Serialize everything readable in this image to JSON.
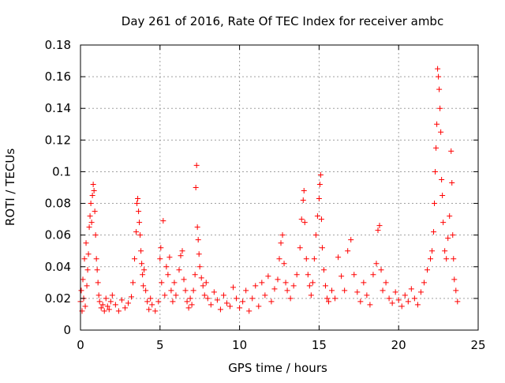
{
  "chart_data": {
    "type": "scatter",
    "title": "Day 261 of 2016, Rate Of TEC Index for receiver ambc",
    "xlabel": "GPS time / hours",
    "ylabel": "ROTI / TECUs",
    "xlim": [
      0,
      25
    ],
    "ylim": [
      0,
      0.18
    ],
    "xticks": [
      0,
      5,
      10,
      15,
      20,
      25
    ],
    "xtick_labels": [
      "0",
      "5",
      "10",
      "15",
      "20",
      "25"
    ],
    "yticks": [
      0,
      0.02,
      0.04,
      0.06,
      0.08,
      0.1,
      0.12,
      0.14,
      0.16,
      0.18
    ],
    "ytick_labels": [
      "0",
      "0.02",
      "0.04",
      "0.06",
      "0.08",
      "0.1",
      "0.12",
      "0.14",
      "0.16",
      "0.18"
    ],
    "grid": true,
    "marker": "+",
    "series": [
      {
        "name": "ROTI",
        "color": "#ff0000",
        "points": [
          [
            0.0,
            0.018
          ],
          [
            0.05,
            0.025
          ],
          [
            0.1,
            0.012
          ],
          [
            0.15,
            0.032
          ],
          [
            0.2,
            0.02
          ],
          [
            0.25,
            0.045
          ],
          [
            0.3,
            0.015
          ],
          [
            0.35,
            0.055
          ],
          [
            0.4,
            0.028
          ],
          [
            0.45,
            0.038
          ],
          [
            0.5,
            0.048
          ],
          [
            0.55,
            0.065
          ],
          [
            0.6,
            0.072
          ],
          [
            0.65,
            0.08
          ],
          [
            0.7,
            0.068
          ],
          [
            0.75,
            0.085
          ],
          [
            0.8,
            0.092
          ],
          [
            0.85,
            0.088
          ],
          [
            0.9,
            0.075
          ],
          [
            0.95,
            0.06
          ],
          [
            1.0,
            0.045
          ],
          [
            1.05,
            0.038
          ],
          [
            1.1,
            0.03
          ],
          [
            1.15,
            0.022
          ],
          [
            1.2,
            0.018
          ],
          [
            1.3,
            0.014
          ],
          [
            1.4,
            0.016
          ],
          [
            1.5,
            0.012
          ],
          [
            1.6,
            0.02
          ],
          [
            1.7,
            0.015
          ],
          [
            1.8,
            0.013
          ],
          [
            1.9,
            0.018
          ],
          [
            2.0,
            0.022
          ],
          [
            2.2,
            0.016
          ],
          [
            2.4,
            0.012
          ],
          [
            2.6,
            0.019
          ],
          [
            2.8,
            0.014
          ],
          [
            3.0,
            0.017
          ],
          [
            3.2,
            0.021
          ],
          [
            3.3,
            0.03
          ],
          [
            3.4,
            0.045
          ],
          [
            3.5,
            0.062
          ],
          [
            3.55,
            0.08
          ],
          [
            3.6,
            0.083
          ],
          [
            3.65,
            0.075
          ],
          [
            3.7,
            0.068
          ],
          [
            3.75,
            0.06
          ],
          [
            3.8,
            0.05
          ],
          [
            3.85,
            0.042
          ],
          [
            3.9,
            0.035
          ],
          [
            3.95,
            0.028
          ],
          [
            4.0,
            0.038
          ],
          [
            4.1,
            0.025
          ],
          [
            4.2,
            0.018
          ],
          [
            4.3,
            0.013
          ],
          [
            4.4,
            0.02
          ],
          [
            4.5,
            0.016
          ],
          [
            4.7,
            0.012
          ],
          [
            4.9,
            0.018
          ],
          [
            5.0,
            0.045
          ],
          [
            5.05,
            0.052
          ],
          [
            5.1,
            0.03
          ],
          [
            5.2,
            0.069
          ],
          [
            5.3,
            0.022
          ],
          [
            5.4,
            0.04
          ],
          [
            5.5,
            0.035
          ],
          [
            5.6,
            0.046
          ],
          [
            5.7,
            0.025
          ],
          [
            5.8,
            0.018
          ],
          [
            5.9,
            0.03
          ],
          [
            6.0,
            0.022
          ],
          [
            6.2,
            0.038
          ],
          [
            6.3,
            0.047
          ],
          [
            6.4,
            0.05
          ],
          [
            6.5,
            0.032
          ],
          [
            6.6,
            0.025
          ],
          [
            6.7,
            0.018
          ],
          [
            6.8,
            0.014
          ],
          [
            6.9,
            0.02
          ],
          [
            7.0,
            0.016
          ],
          [
            7.1,
            0.025
          ],
          [
            7.2,
            0.035
          ],
          [
            7.25,
            0.09
          ],
          [
            7.3,
            0.104
          ],
          [
            7.35,
            0.065
          ],
          [
            7.4,
            0.057
          ],
          [
            7.45,
            0.048
          ],
          [
            7.5,
            0.04
          ],
          [
            7.6,
            0.033
          ],
          [
            7.7,
            0.028
          ],
          [
            7.8,
            0.022
          ],
          [
            7.9,
            0.03
          ],
          [
            8.0,
            0.02
          ],
          [
            8.2,
            0.016
          ],
          [
            8.4,
            0.024
          ],
          [
            8.6,
            0.019
          ],
          [
            8.8,
            0.013
          ],
          [
            9.0,
            0.022
          ],
          [
            9.2,
            0.017
          ],
          [
            9.4,
            0.015
          ],
          [
            9.6,
            0.027
          ],
          [
            9.8,
            0.02
          ],
          [
            10.0,
            0.014
          ],
          [
            10.2,
            0.018
          ],
          [
            10.4,
            0.025
          ],
          [
            10.6,
            0.012
          ],
          [
            10.8,
            0.02
          ],
          [
            11.0,
            0.028
          ],
          [
            11.2,
            0.015
          ],
          [
            11.4,
            0.03
          ],
          [
            11.6,
            0.022
          ],
          [
            11.8,
            0.034
          ],
          [
            12.0,
            0.018
          ],
          [
            12.2,
            0.026
          ],
          [
            12.4,
            0.032
          ],
          [
            12.5,
            0.045
          ],
          [
            12.6,
            0.055
          ],
          [
            12.7,
            0.06
          ],
          [
            12.8,
            0.042
          ],
          [
            12.9,
            0.03
          ],
          [
            13.0,
            0.025
          ],
          [
            13.2,
            0.02
          ],
          [
            13.4,
            0.028
          ],
          [
            13.6,
            0.035
          ],
          [
            13.8,
            0.052
          ],
          [
            13.9,
            0.07
          ],
          [
            14.0,
            0.082
          ],
          [
            14.05,
            0.088
          ],
          [
            14.1,
            0.068
          ],
          [
            14.2,
            0.045
          ],
          [
            14.3,
            0.035
          ],
          [
            14.4,
            0.028
          ],
          [
            14.5,
            0.022
          ],
          [
            14.6,
            0.03
          ],
          [
            14.7,
            0.045
          ],
          [
            14.8,
            0.06
          ],
          [
            14.9,
            0.072
          ],
          [
            15.0,
            0.083
          ],
          [
            15.05,
            0.092
          ],
          [
            15.1,
            0.098
          ],
          [
            15.15,
            0.07
          ],
          [
            15.2,
            0.052
          ],
          [
            15.3,
            0.038
          ],
          [
            15.4,
            0.028
          ],
          [
            15.5,
            0.02
          ],
          [
            15.6,
            0.018
          ],
          [
            15.8,
            0.025
          ],
          [
            16.0,
            0.02
          ],
          [
            16.2,
            0.046
          ],
          [
            16.4,
            0.034
          ],
          [
            16.6,
            0.025
          ],
          [
            16.8,
            0.05
          ],
          [
            17.0,
            0.057
          ],
          [
            17.2,
            0.035
          ],
          [
            17.4,
            0.024
          ],
          [
            17.6,
            0.018
          ],
          [
            17.8,
            0.03
          ],
          [
            18.0,
            0.022
          ],
          [
            18.2,
            0.016
          ],
          [
            18.4,
            0.035
          ],
          [
            18.6,
            0.042
          ],
          [
            18.7,
            0.063
          ],
          [
            18.8,
            0.066
          ],
          [
            18.9,
            0.038
          ],
          [
            19.0,
            0.025
          ],
          [
            19.2,
            0.03
          ],
          [
            19.4,
            0.02
          ],
          [
            19.6,
            0.017
          ],
          [
            19.8,
            0.024
          ],
          [
            20.0,
            0.019
          ],
          [
            20.2,
            0.015
          ],
          [
            20.4,
            0.022
          ],
          [
            20.6,
            0.018
          ],
          [
            20.8,
            0.026
          ],
          [
            21.0,
            0.02
          ],
          [
            21.2,
            0.016
          ],
          [
            21.4,
            0.024
          ],
          [
            21.6,
            0.03
          ],
          [
            21.8,
            0.038
          ],
          [
            22.0,
            0.045
          ],
          [
            22.1,
            0.05
          ],
          [
            22.2,
            0.062
          ],
          [
            22.25,
            0.08
          ],
          [
            22.3,
            0.1
          ],
          [
            22.35,
            0.115
          ],
          [
            22.4,
            0.13
          ],
          [
            22.45,
            0.165
          ],
          [
            22.5,
            0.16
          ],
          [
            22.55,
            0.152
          ],
          [
            22.6,
            0.14
          ],
          [
            22.65,
            0.125
          ],
          [
            22.7,
            0.095
          ],
          [
            22.75,
            0.085
          ],
          [
            22.8,
            0.068
          ],
          [
            22.9,
            0.05
          ],
          [
            23.0,
            0.045
          ],
          [
            23.1,
            0.058
          ],
          [
            23.2,
            0.072
          ],
          [
            23.3,
            0.113
          ],
          [
            23.35,
            0.093
          ],
          [
            23.4,
            0.06
          ],
          [
            23.45,
            0.045
          ],
          [
            23.5,
            0.032
          ],
          [
            23.6,
            0.025
          ],
          [
            23.7,
            0.018
          ]
        ]
      }
    ]
  },
  "colors": {
    "series": "#ff0000",
    "grid": "#a0a0a0",
    "axis": "#000000",
    "background": "#ffffff"
  }
}
